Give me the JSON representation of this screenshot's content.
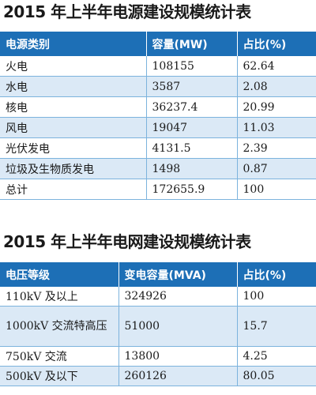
{
  "power_table": {
    "title": "2015 年上半年电源建设规模统计表",
    "headers": [
      "电源类别",
      "容量(MW)",
      "占比(%)"
    ],
    "rows": [
      [
        "火电",
        "108155",
        "62.64"
      ],
      [
        "水电",
        "3587",
        "2.08"
      ],
      [
        "核电",
        "36237.4",
        "20.99"
      ],
      [
        "风电",
        "19047",
        "11.03"
      ],
      [
        "光伏发电",
        "4131.5",
        "2.39"
      ],
      [
        "垃圾及生物质发电",
        "1498",
        "0.87"
      ],
      [
        "总计",
        "172655.9",
        "100"
      ]
    ]
  },
  "grid_table": {
    "title": "2015 年上半年电网建设规模统计表",
    "headers": [
      "电压等级",
      "变电容量(MVA)",
      "占比(%)"
    ],
    "rows": [
      [
        "110kV 及以上",
        "324926",
        "100"
      ],
      [
        "1000kV 交流特高压",
        "51000",
        "15.7"
      ],
      [
        "750kV 交流",
        "13800",
        "4.25"
      ],
      [
        "500kV 及以下",
        "260126",
        "80.05"
      ]
    ]
  },
  "colors": {
    "header_bg": "#1d6fb6",
    "row_alt_bg": "#dbe9f6",
    "row_border": "#7cb3dd"
  }
}
